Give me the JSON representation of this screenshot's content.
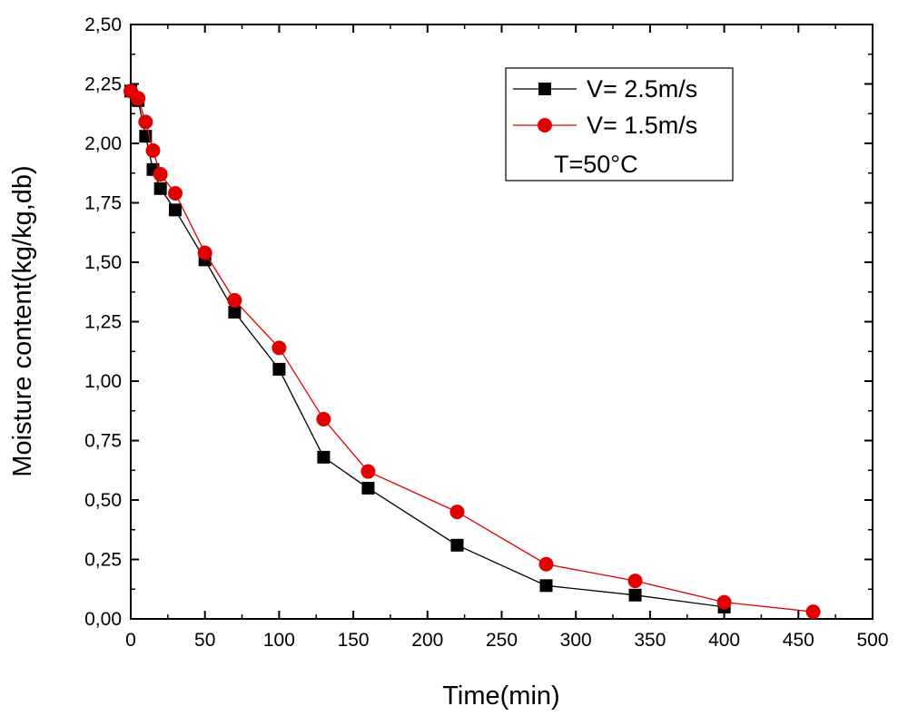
{
  "chart_data": {
    "type": "line",
    "title": "",
    "xlabel": "Time(min)",
    "ylabel": "Moisture content(kg/kg,db)",
    "xlim": [
      0,
      500
    ],
    "ylim": [
      0,
      2.5
    ],
    "x_ticks": [
      "0",
      "50",
      "100",
      "150",
      "200",
      "250",
      "300",
      "350",
      "400",
      "450",
      "500"
    ],
    "y_ticks": [
      "0,00",
      "0,25",
      "0,50",
      "0,75",
      "1,00",
      "1,25",
      "1,50",
      "1,75",
      "2,00",
      "2,25",
      "2,50"
    ],
    "grid": false,
    "legend_position": "top-right",
    "annotation": "T=50°C",
    "series": [
      {
        "name": "V= 2.5m/s",
        "color": "#000000",
        "marker": "square",
        "x": [
          0,
          5,
          10,
          15,
          20,
          30,
          50,
          70,
          100,
          130,
          160,
          220,
          280,
          340,
          400
        ],
        "y": [
          2.22,
          2.18,
          2.03,
          1.89,
          1.81,
          1.72,
          1.51,
          1.29,
          1.05,
          0.68,
          0.55,
          0.31,
          0.14,
          0.1,
          0.05
        ]
      },
      {
        "name": "V= 1.5m/s",
        "color": "#e00000",
        "marker": "circle",
        "x": [
          0,
          5,
          10,
          15,
          20,
          30,
          50,
          70,
          100,
          130,
          160,
          220,
          280,
          340,
          400,
          460
        ],
        "y": [
          2.22,
          2.19,
          2.09,
          1.97,
          1.87,
          1.79,
          1.54,
          1.34,
          1.14,
          0.84,
          0.62,
          0.45,
          0.23,
          0.16,
          0.07,
          0.03
        ]
      }
    ]
  }
}
